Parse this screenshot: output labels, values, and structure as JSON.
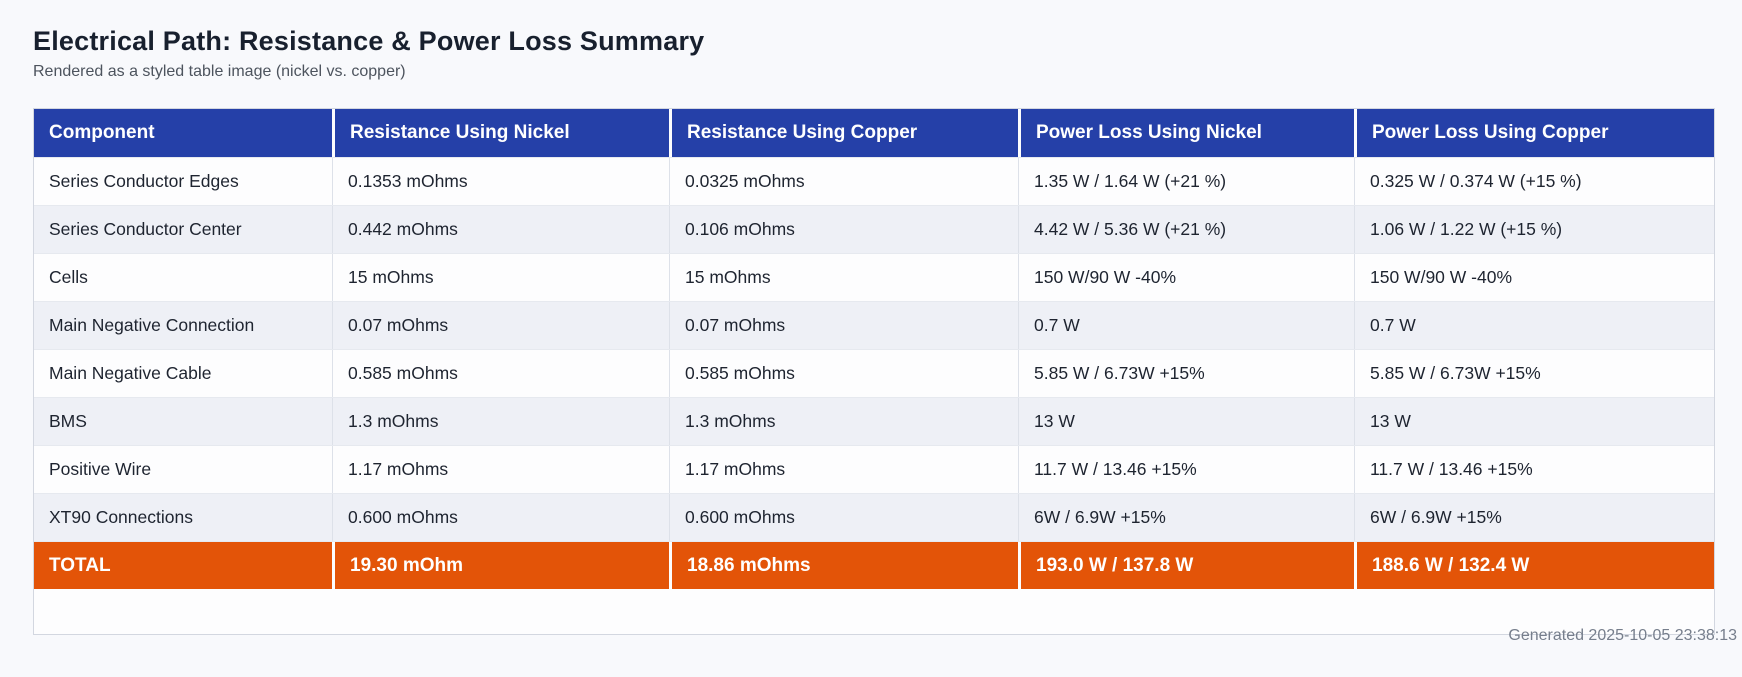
{
  "page": {
    "title": "Electrical Path: Resistance & Power Loss Summary",
    "subtitle": "Rendered as a styled table image (nickel vs. copper)"
  },
  "colors": {
    "header_bg": "#2540a8",
    "total_bg": "#e35408",
    "row_alt_bg": "#eef0f6",
    "row_bg": "#fdfdfe",
    "page_bg": "#f8f9fc",
    "text_dark": "#1e2430",
    "footer_text": "#767e8c"
  },
  "chart_data": {
    "type": "table",
    "title": "Electrical Path: Resistance & Power Loss Summary",
    "columns": [
      "Component",
      "Resistance Using Nickel",
      "Resistance Using Copper",
      "Power Loss Using Nickel",
      "Power Loss Using Copper"
    ],
    "rows": [
      {
        "cells": [
          "Series Conductor Edges",
          "0.1353 mOhms",
          "0.0325 mOhms",
          "1.35 W / 1.64 W (+21 %)",
          "0.325 W / 0.374 W (+15 %)"
        ]
      },
      {
        "cells": [
          "Series Conductor Center",
          "0.442 mOhms",
          "0.106 mOhms",
          "4.42 W / 5.36 W (+21 %)",
          "1.06 W / 1.22 W (+15 %)"
        ]
      },
      {
        "cells": [
          "Cells",
          "15 mOhms",
          "15 mOhms",
          "150 W/90 W -40%",
          "150 W/90 W -40%"
        ]
      },
      {
        "cells": [
          "Main Negative Connection",
          "0.07 mOhms",
          "0.07 mOhms",
          "0.7 W",
          "0.7 W"
        ]
      },
      {
        "cells": [
          "Main Negative Cable",
          "0.585 mOhms",
          "0.585 mOhms",
          "5.85 W / 6.73W +15%",
          "5.85 W / 6.73W +15%"
        ]
      },
      {
        "cells": [
          "BMS",
          "1.3 mOhms",
          "1.3 mOhms",
          "13 W",
          "13 W"
        ]
      },
      {
        "cells": [
          "Positive Wire",
          "1.17 mOhms",
          "1.17 mOhms",
          "11.7 W / 13.46 +15%",
          "11.7 W / 13.46 +15%"
        ]
      },
      {
        "cells": [
          "XT90 Connections",
          "0.600 mOhms",
          "0.600 mOhms",
          "6W / 6.9W +15%",
          "6W / 6.9W +15%"
        ]
      }
    ],
    "total": {
      "cells": [
        "TOTAL",
        "19.30 mOhm",
        "18.86 mOhms",
        "193.0 W / 137.8 W",
        "188.6 W / 132.4 W"
      ]
    }
  },
  "footer": {
    "generated": "Generated 2025-10-05 23:38:13"
  }
}
